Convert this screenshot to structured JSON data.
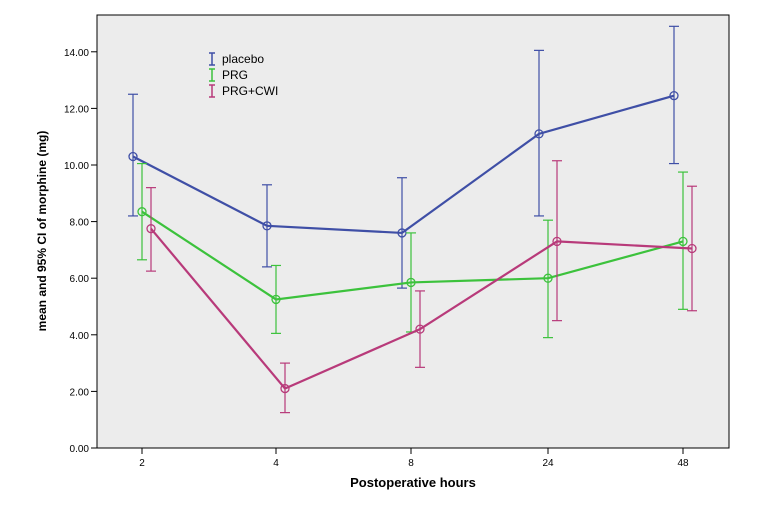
{
  "chart_data": {
    "type": "line",
    "xlabel": "Postoperative hours",
    "ylabel": "mean and 95% CI of morphine (mg)",
    "categories": [
      "2",
      "4",
      "8",
      "24",
      "48"
    ],
    "ylim": [
      0,
      15.3
    ],
    "yticks": [
      0,
      2,
      4,
      6,
      8,
      10,
      12,
      14
    ],
    "ytick_labels": [
      "0.00",
      "2.00",
      "4.00",
      "6.00",
      "8.00",
      "10.00",
      "12.00",
      "14.00"
    ],
    "grid": false,
    "legend_position": "top-left",
    "plot_background": "#ececec",
    "series": [
      {
        "name": "placebo",
        "color": "#3f4fa6",
        "values": [
          10.3,
          7.85,
          7.6,
          11.1,
          12.45
        ],
        "ci_low": [
          8.2,
          6.4,
          5.65,
          8.2,
          10.05
        ],
        "ci_high": [
          12.5,
          9.3,
          9.55,
          14.05,
          14.9
        ]
      },
      {
        "name": "PRG",
        "color": "#3cc23c",
        "values": [
          8.35,
          5.25,
          5.85,
          6.0,
          7.3
        ],
        "ci_low": [
          6.65,
          4.05,
          4.1,
          3.9,
          4.9
        ],
        "ci_high": [
          10.05,
          6.45,
          7.6,
          8.05,
          9.75
        ]
      },
      {
        "name": "PRG+CWI",
        "color": "#b83a7a",
        "values": [
          7.75,
          2.1,
          4.2,
          7.3,
          7.05
        ],
        "ci_low": [
          6.25,
          1.25,
          2.85,
          4.5,
          4.85
        ],
        "ci_high": [
          9.2,
          3.0,
          5.55,
          10.15,
          9.25
        ]
      }
    ]
  }
}
